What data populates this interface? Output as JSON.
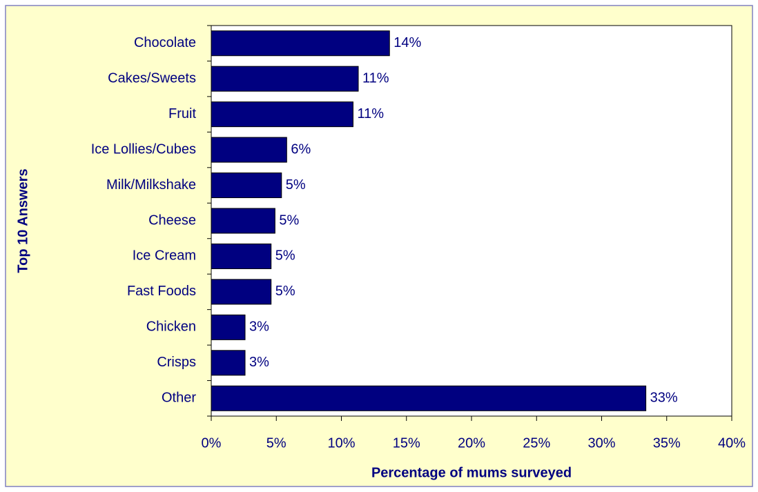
{
  "chart_data": {
    "type": "barh",
    "x_label": "Percentage of mums surveyed",
    "y_label": "Top 10 Answers",
    "categories": [
      "Chocolate",
      "Cakes/Sweets",
      "Fruit",
      "Ice Lollies/Cubes",
      "Milk/Milkshake",
      "Cheese",
      "Ice Cream",
      "Fast Foods",
      "Chicken",
      "Crisps",
      "Other"
    ],
    "values": [
      13.7,
      11.3,
      10.9,
      5.8,
      5.4,
      4.9,
      4.6,
      4.6,
      2.6,
      2.6,
      33.4
    ],
    "value_labels": [
      "14%",
      "11%",
      "11%",
      "6%",
      "5%",
      "5%",
      "5%",
      "5%",
      "3%",
      "3%",
      "33%"
    ],
    "color": "#000080",
    "xlim": [
      0,
      40
    ],
    "xticks": [
      {
        "value": 0,
        "label": "0%"
      },
      {
        "value": 5,
        "label": "5%"
      },
      {
        "value": 10,
        "label": "10%"
      },
      {
        "value": 15,
        "label": "15%"
      },
      {
        "value": 20,
        "label": "20%"
      },
      {
        "value": 25,
        "label": "25%"
      },
      {
        "value": 30,
        "label": "30%"
      },
      {
        "value": 35,
        "label": "35%"
      },
      {
        "value": 40,
        "label": "40%"
      }
    ],
    "grid": false
  }
}
